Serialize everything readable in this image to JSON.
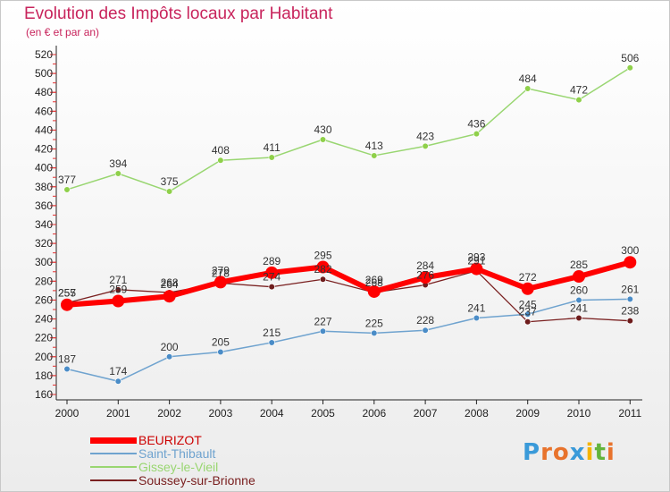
{
  "header": {
    "title": "Evolution des Impôts locaux par Habitant",
    "subtitle": "(en € et par an)"
  },
  "brand": {
    "logo_letters": [
      "P",
      "r",
      "o",
      "x",
      "i",
      "t",
      "i"
    ],
    "logo_colors": [
      "#3a9ad9",
      "#e8732c",
      "#e8732c",
      "#3a9ad9",
      "#f5b400",
      "#63b43c",
      "#e8732c"
    ]
  },
  "chart_data": {
    "type": "line",
    "x": [
      "2000",
      "2001",
      "2002",
      "2003",
      "2004",
      "2005",
      "2006",
      "2007",
      "2008",
      "2009",
      "2010",
      "2011"
    ],
    "ylim": [
      160,
      520
    ],
    "yticks": [
      160,
      180,
      200,
      220,
      240,
      260,
      280,
      300,
      320,
      340,
      360,
      380,
      400,
      420,
      440,
      460,
      480,
      500,
      520
    ],
    "grid": false,
    "legend_position": "bottom-left",
    "series": [
      {
        "name": "Gissey-le-Vieil",
        "color": "#99d671",
        "marker_color": "#8fd04a",
        "line_width": 1.5,
        "marker_r": 3.3,
        "values": [
          377,
          394,
          375,
          408,
          411,
          430,
          413,
          423,
          436,
          484,
          472,
          506
        ],
        "labels": [
          "377",
          "394",
          "375",
          "408",
          "411",
          "430",
          "413",
          "423",
          "436",
          "484",
          "472",
          "506"
        ]
      },
      {
        "name": "Soussey-sur-Brionne",
        "color": "#7a2020",
        "marker_color": "#6e1c1c",
        "line_width": 1.3,
        "marker_r": 3.3,
        "values": [
          257,
          271,
          268,
          278,
          274,
          282,
          268,
          276,
          291,
          237,
          241,
          238
        ],
        "labels": [
          "257",
          "271",
          "268",
          "278",
          "274",
          "282",
          "268",
          "276",
          "291",
          "237",
          "241",
          "238"
        ]
      },
      {
        "name": "Saint-Thibault",
        "color": "#6fa3cf",
        "marker_color": "#4a8cc7",
        "line_width": 1.5,
        "marker_r": 3.3,
        "values": [
          187,
          174,
          200,
          205,
          215,
          227,
          225,
          228,
          241,
          245,
          260,
          261
        ],
        "labels": [
          "187",
          "174",
          "200",
          "205",
          "215",
          "227",
          "225",
          "228",
          "241",
          "245",
          "260",
          "261"
        ]
      },
      {
        "name": "BEURIZOT",
        "color": "#ff0000",
        "marker_color": "#ff0000",
        "line_width": 6,
        "marker_r": 7,
        "values": [
          255,
          259,
          264,
          279,
          289,
          295,
          269,
          284,
          293,
          272,
          285,
          300
        ],
        "labels": [
          "255",
          "259",
          "264",
          "279",
          "289",
          "295",
          "269",
          "284",
          "293",
          "272",
          "285",
          "300"
        ]
      }
    ]
  },
  "legend": [
    {
      "name": "BEURIZOT",
      "color": "#ff0000",
      "thickness": 7
    },
    {
      "name": "Saint-Thibault",
      "color": "#6fa3cf",
      "thickness": 2
    },
    {
      "name": "Gissey-le-Vieil",
      "color": "#99d671",
      "thickness": 2
    },
    {
      "name": "Soussey-sur-Brionne",
      "color": "#7a2020",
      "thickness": 2
    }
  ]
}
